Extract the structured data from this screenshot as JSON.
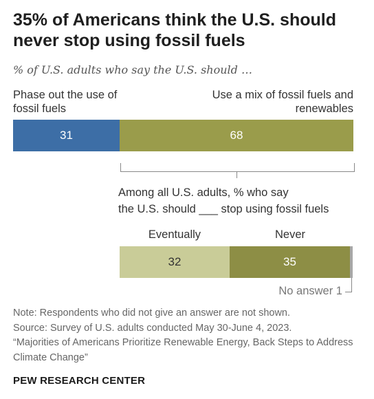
{
  "title": "35% of Americans think the U.S. should never stop using fossil fuels",
  "subtitle": "% of U.S. adults who say the U.S. should …",
  "chart_data": [
    {
      "type": "bar",
      "orientation": "horizontal-stacked",
      "categories": [
        "Phase out the use of fossil fuels",
        "Use a mix of fossil fuels and renewables"
      ],
      "values": [
        31,
        68
      ],
      "colors": [
        "#3d6ea6",
        "#9a9c4b"
      ]
    },
    {
      "type": "bar",
      "orientation": "horizontal-stacked",
      "title": "Among all U.S. adults, % who say the U.S. should ___ stop using fossil fuels",
      "categories": [
        "Eventually",
        "Never",
        "No answer"
      ],
      "values": [
        32,
        35,
        1
      ],
      "colors": [
        "#c9cc98",
        "#8d8e45",
        "#a8a8a8"
      ]
    }
  ],
  "labels": {
    "phase_out": "Phase out the use of fossil fuels",
    "mix": "Use a mix of fossil fuels and renewables",
    "sub_question_line1": "Among all U.S. adults, % who say",
    "sub_question_line2": "the U.S. should ___ stop using fossil fuels",
    "eventually": "Eventually",
    "never": "Never",
    "no_answer": "No answer 1"
  },
  "note": {
    "line1": "Note: Respondents who did not give an answer are not shown.",
    "line2": "Source: Survey of U.S. adults conducted May 30-June 4, 2023.",
    "line3": "“Majorities of Americans Prioritize Renewable Energy, Back Steps to Address Climate Change”"
  },
  "brand": "PEW RESEARCH CENTER"
}
